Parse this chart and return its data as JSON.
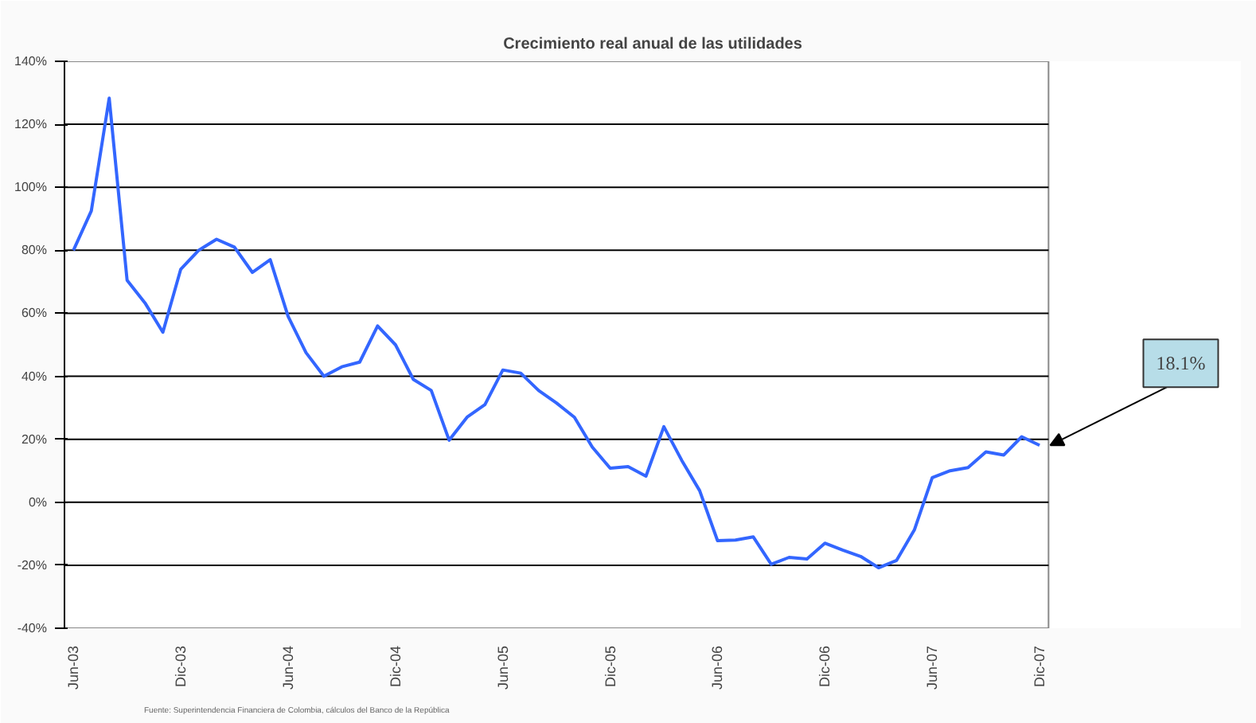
{
  "chart_data": {
    "type": "line",
    "title": "Crecimiento real anual de las utilidades",
    "categories": [
      "Jun-03",
      null,
      null,
      null,
      null,
      null,
      "Dic-03",
      null,
      null,
      null,
      null,
      null,
      "Jun-04",
      null,
      null,
      null,
      null,
      null,
      "Dic-04",
      null,
      null,
      null,
      null,
      null,
      "Jun-05",
      null,
      null,
      null,
      null,
      null,
      "Dic-05",
      null,
      null,
      null,
      null,
      null,
      "Jun-06",
      null,
      null,
      null,
      null,
      null,
      "Dic-06",
      null,
      null,
      null,
      null,
      null,
      "Jun-07",
      null,
      null,
      null,
      null,
      null,
      "Dic-07"
    ],
    "series": [
      {
        "color": "#3366ff",
        "values": [
          80,
          92.5,
          128.3,
          70.5,
          63.3,
          54,
          74,
          80,
          83.5,
          81,
          73,
          77,
          59,
          47.5,
          40,
          43,
          44.5,
          56,
          50,
          39,
          35.5,
          19.7,
          27,
          31,
          42,
          41,
          35.5,
          31.5,
          27,
          17.5,
          10.8,
          11.3,
          8.3,
          24,
          13.3,
          3.7,
          -12.2,
          -12,
          -11,
          -19.7,
          -17.5,
          -18,
          -13,
          -15.2,
          -17.2,
          -20.8,
          -18.5,
          -8.8,
          7.8,
          10,
          11,
          16,
          15,
          20.8,
          18.1
        ]
      }
    ],
    "ylim": [
      -40,
      140
    ],
    "yticks": [
      {
        "value": -40,
        "label": "-40%"
      },
      {
        "value": -20,
        "label": "-20%"
      },
      {
        "value": 0,
        "label": "0%"
      },
      {
        "value": 20,
        "label": "20%"
      },
      {
        "value": 40,
        "label": "40%"
      },
      {
        "value": 60,
        "label": "60%"
      },
      {
        "value": 80,
        "label": "80%"
      },
      {
        "value": 100,
        "label": "100%"
      },
      {
        "value": 120,
        "label": "120%"
      },
      {
        "value": 140,
        "label": "140%"
      }
    ],
    "grid": "y",
    "marker": "none",
    "line_style": "solid",
    "annotations": [
      {
        "text": "18.1%",
        "x": "Dic-07",
        "y": 18.1
      },
      "Fuente: Superintendencia Financiera de Colombia, cálculos del Banco de la República"
    ]
  }
}
